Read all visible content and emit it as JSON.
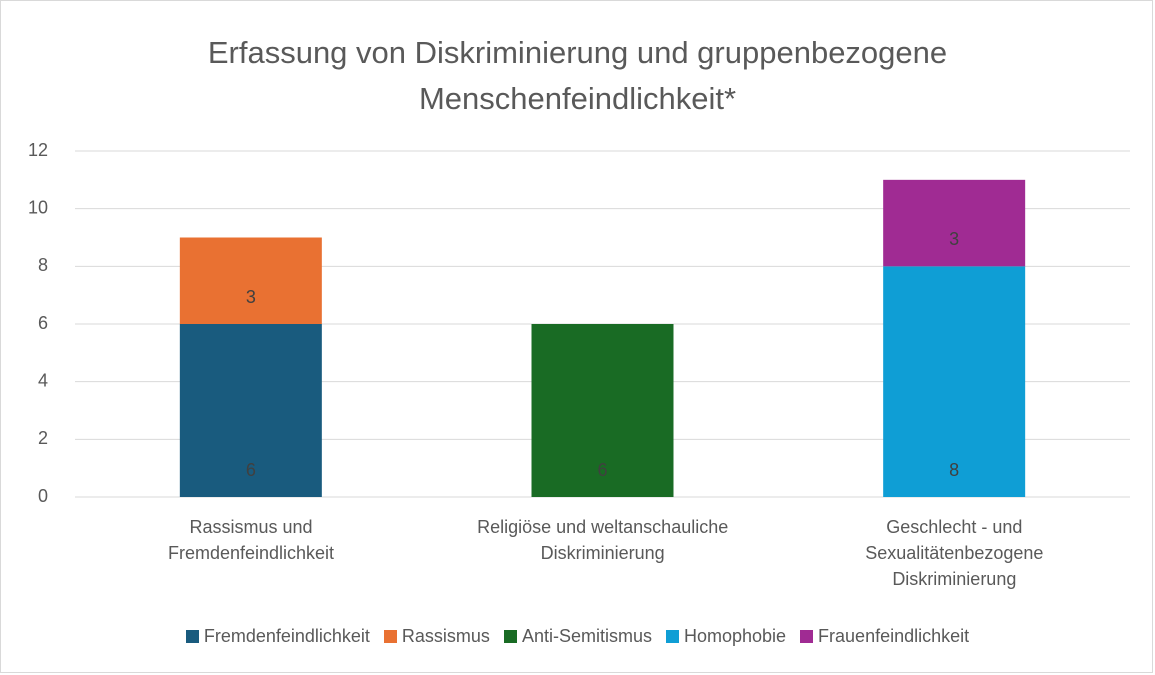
{
  "chart_data": {
    "type": "stacked_bar",
    "title": "Erfassung von Diskriminierung und gruppenbezogene\nMenschenfeindlichkeit*",
    "categories": [
      "Rassismus und\nFremdenfeindlichkeit",
      "Religiöse und weltanschauliche\nDiskriminierung",
      "Geschlecht - und\nSexualitätenbezogene\nDiskriminierung"
    ],
    "series": [
      {
        "name": "Fremdenfeindlichkeit",
        "color": "#195b7e",
        "values": [
          6,
          null,
          null
        ]
      },
      {
        "name": "Rassismus",
        "color": "#e97132",
        "values": [
          3,
          null,
          null
        ]
      },
      {
        "name": "Anti-Semitismus",
        "color": "#196b24",
        "values": [
          null,
          6,
          null
        ]
      },
      {
        "name": "Homophobie",
        "color": "#0f9ed5",
        "values": [
          null,
          null,
          8
        ]
      },
      {
        "name": "Frauenfeindlichkeit",
        "color": "#a02b93",
        "values": [
          null,
          null,
          3
        ]
      }
    ],
    "ylim": [
      0,
      12
    ],
    "yticks": [
      0,
      2,
      4,
      6,
      8,
      10,
      12
    ],
    "grid": true,
    "legend": "bottom"
  }
}
